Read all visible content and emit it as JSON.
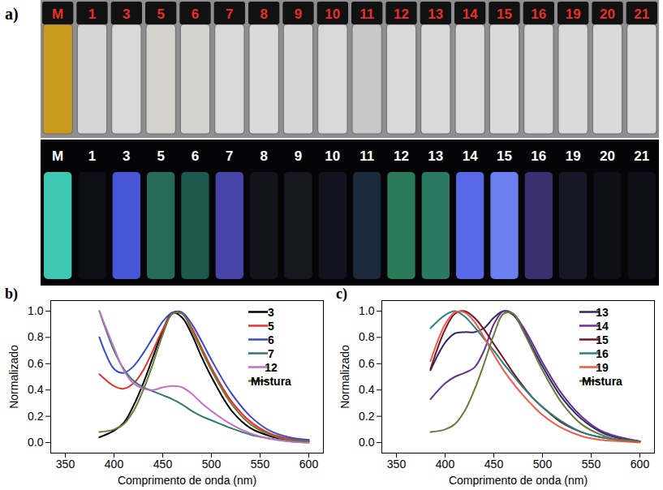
{
  "panel_a": {
    "panel_label": "a)",
    "photo_top": {
      "labels": [
        "M",
        "1",
        "3",
        "5",
        "6",
        "7",
        "8",
        "9",
        "10",
        "11",
        "12",
        "13",
        "14",
        "15",
        "16",
        "19",
        "20",
        "21"
      ],
      "colors": [
        "#c89a1e",
        "#d6d6d6",
        "#d8d8d8",
        "#d4d4cc",
        "#d4d4d0",
        "#d8d8d8",
        "#dadada",
        "#d6d6d6",
        "#d8d8d8",
        "#c8c8c8",
        "#d8d8d8",
        "#d8d8d8",
        "#dadada",
        "#dadada",
        "#d8d8d8",
        "#dadada",
        "#dadada",
        "#dadada"
      ]
    },
    "photo_bottom": {
      "labels": [
        "M",
        "1",
        "3",
        "5",
        "6",
        "7",
        "8",
        "9",
        "10",
        "11",
        "12",
        "13",
        "14",
        "15",
        "16",
        "19",
        "20",
        "21"
      ],
      "colors": [
        "#3ec8b4",
        "#0e0e16",
        "#4656d6",
        "#276a58",
        "#1c5a4e",
        "#4644a6",
        "#13131b",
        "#17171f",
        "#13131f",
        "#1a2a3a",
        "#2a7a58",
        "#2a7a62",
        "#5868e6",
        "#6a80f0",
        "#3a3070",
        "#171727",
        "#0f0f17",
        "#0f0f17"
      ]
    }
  },
  "chart_data": [
    {
      "type": "line",
      "panel_label": "b)",
      "xlabel": "Comprimento de onda (nm)",
      "ylabel": "Normalizado",
      "x": [
        385,
        400,
        410,
        420,
        430,
        440,
        450,
        460,
        470,
        480,
        490,
        500,
        520,
        540,
        560,
        580,
        600
      ],
      "xlim": [
        335,
        615
      ],
      "xticks": [
        350,
        400,
        450,
        500,
        550,
        600
      ],
      "ylim": [
        -0.08,
        1.08
      ],
      "yticks": [
        {
          "value": 0,
          "label": "0.0"
        },
        {
          "value": 0.2,
          "label": "0.2"
        },
        {
          "value": 0.4,
          "label": "0.4"
        },
        {
          "value": 0.6,
          "label": "0.6"
        },
        {
          "value": 0.8,
          "label": "0.8"
        },
        {
          "value": 1,
          "label": "1.0"
        }
      ],
      "grid": false,
      "legend": "top-right",
      "series": [
        {
          "name": "3",
          "color": "#000000",
          "values": [
            0.04,
            0.09,
            0.15,
            0.28,
            0.45,
            0.65,
            0.85,
            0.99,
            0.95,
            0.82,
            0.65,
            0.5,
            0.25,
            0.11,
            0.05,
            0.02,
            0.01
          ]
        },
        {
          "name": "5",
          "color": "#e8302a",
          "values": [
            0.52,
            0.43,
            0.41,
            0.45,
            0.55,
            0.7,
            0.86,
            0.98,
            0.98,
            0.87,
            0.72,
            0.57,
            0.32,
            0.16,
            0.07,
            0.03,
            0.02
          ]
        },
        {
          "name": "6",
          "color": "#3a4ad0",
          "values": [
            0.8,
            0.56,
            0.53,
            0.58,
            0.68,
            0.8,
            0.92,
            0.99,
            0.99,
            0.9,
            0.77,
            0.63,
            0.38,
            0.2,
            0.09,
            0.04,
            0.02
          ]
        },
        {
          "name": "7",
          "color": "#2a7a6e",
          "values": [
            1.0,
            0.7,
            0.56,
            0.47,
            0.42,
            0.39,
            0.36,
            0.33,
            0.29,
            0.24,
            0.2,
            0.17,
            0.11,
            0.06,
            0.03,
            0.01,
            0.0
          ]
        },
        {
          "name": "12",
          "color": "#c86dc8",
          "values": [
            1.0,
            0.72,
            0.55,
            0.45,
            0.41,
            0.4,
            0.42,
            0.43,
            0.42,
            0.37,
            0.3,
            0.24,
            0.14,
            0.07,
            0.03,
            0.01,
            0.0
          ]
        },
        {
          "name": "Mistura",
          "color": "#6b7a3a",
          "values": [
            0.08,
            0.1,
            0.14,
            0.24,
            0.4,
            0.6,
            0.82,
            0.98,
            0.98,
            0.85,
            0.7,
            0.55,
            0.3,
            0.14,
            0.06,
            0.02,
            0.01
          ]
        }
      ]
    },
    {
      "type": "line",
      "panel_label": "c)",
      "xlabel": "Comprimento de onda (nm)",
      "ylabel": "Normalizado",
      "x": [
        385,
        400,
        410,
        420,
        430,
        440,
        450,
        460,
        470,
        480,
        490,
        500,
        520,
        540,
        560,
        580,
        600
      ],
      "xlim": [
        335,
        615
      ],
      "xticks": [
        350,
        400,
        450,
        500,
        550,
        600
      ],
      "ylim": [
        -0.08,
        1.08
      ],
      "yticks": [
        {
          "value": 0,
          "label": "0.0"
        },
        {
          "value": 0.2,
          "label": "0.2"
        },
        {
          "value": 0.4,
          "label": "0.4"
        },
        {
          "value": 0.6,
          "label": "0.6"
        },
        {
          "value": 0.8,
          "label": "0.8"
        },
        {
          "value": 1,
          "label": "1.0"
        }
      ],
      "grid": false,
      "legend": "top-right",
      "series": [
        {
          "name": "13",
          "color": "#2b2b6b",
          "values": [
            0.55,
            0.76,
            0.83,
            0.84,
            0.84,
            0.87,
            0.95,
            1.0,
            0.97,
            0.86,
            0.72,
            0.58,
            0.34,
            0.18,
            0.08,
            0.03,
            0.01
          ]
        },
        {
          "name": "14",
          "color": "#6a2f8f",
          "values": [
            0.33,
            0.45,
            0.5,
            0.53,
            0.57,
            0.7,
            0.9,
            1.0,
            0.98,
            0.88,
            0.75,
            0.61,
            0.37,
            0.2,
            0.09,
            0.04,
            0.01
          ]
        },
        {
          "name": "15",
          "color": "#7a1020",
          "values": [
            0.56,
            0.86,
            0.98,
            1.0,
            0.95,
            0.86,
            0.75,
            0.64,
            0.53,
            0.43,
            0.34,
            0.27,
            0.15,
            0.08,
            0.04,
            0.02,
            0.01
          ]
        },
        {
          "name": "16",
          "color": "#2a8080",
          "values": [
            0.87,
            0.97,
            1.0,
            0.96,
            0.88,
            0.79,
            0.7,
            0.6,
            0.51,
            0.42,
            0.34,
            0.27,
            0.16,
            0.08,
            0.04,
            0.02,
            0.01
          ]
        },
        {
          "name": "19",
          "color": "#f05a4a",
          "values": [
            0.62,
            0.9,
            0.99,
            0.99,
            0.92,
            0.8,
            0.67,
            0.55,
            0.45,
            0.36,
            0.28,
            0.21,
            0.11,
            0.05,
            0.02,
            0.01,
            0.0
          ]
        },
        {
          "name": "Mistura",
          "color": "#6b7a3a",
          "values": [
            0.08,
            0.1,
            0.14,
            0.24,
            0.4,
            0.6,
            0.82,
            0.98,
            0.98,
            0.85,
            0.7,
            0.55,
            0.3,
            0.14,
            0.06,
            0.02,
            0.01
          ]
        }
      ]
    }
  ]
}
